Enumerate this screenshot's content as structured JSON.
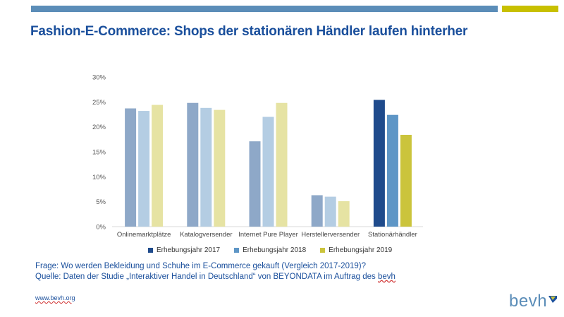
{
  "header": {
    "title": "Fashion-E-Commerce: Shops der stationären Händler laufen hinterher"
  },
  "chart_data": {
    "type": "bar",
    "categories": [
      "Onlinemarktplätze",
      "Katalogversender",
      "Internet Pure Player",
      "Herstellerversender",
      "Stationärhändler"
    ],
    "series": [
      {
        "name": "Erhebungsjahr 2017",
        "values": [
          23.7,
          24.8,
          17.1,
          6.3,
          25.4
        ]
      },
      {
        "name": "Erhebungsjahr 2018",
        "values": [
          23.2,
          23.8,
          22.0,
          6.0,
          22.4
        ]
      },
      {
        "name": "Erhebungsjahr 2019",
        "values": [
          24.4,
          23.4,
          24.8,
          5.1,
          18.4
        ]
      }
    ],
    "ylim": [
      0,
      30
    ],
    "yticks": [
      "0%",
      "5%",
      "10%",
      "15%",
      "20%",
      "25%",
      "30%"
    ],
    "grid": false,
    "legend_position": "bottom",
    "colors_muted": [
      "#8ea8c8",
      "#b4cde3",
      "#e6e3a3"
    ],
    "colors_highlight": [
      "#1f4b8c",
      "#5e96c6",
      "#cbc43c"
    ]
  },
  "notes": {
    "question": "Frage: Wo werden Bekleidung und Schuhe im E-Commerce gekauft (Vergleich 2017-2019)?",
    "source_prefix": "Quelle: Daten der Studie „Interaktiver Handel in Deutschland“ von BEYONDATA im Auftrag des ",
    "source_link": "bevh"
  },
  "footer": {
    "url": "www.bevh.org",
    "logo": "bevh"
  }
}
